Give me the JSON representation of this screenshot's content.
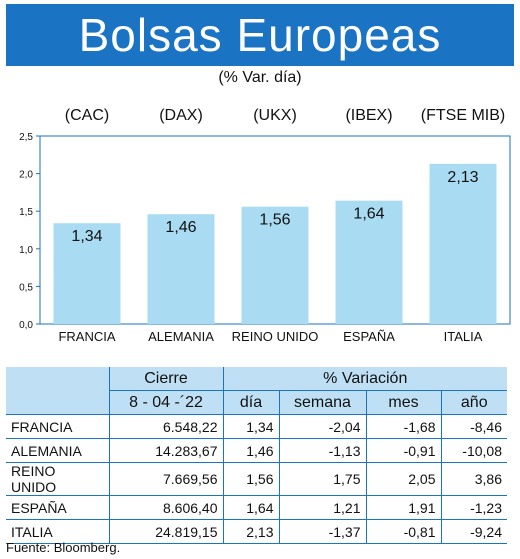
{
  "title": "Bolsas Europeas",
  "subtitle": "(% Var. día)",
  "chart_data": {
    "type": "bar",
    "categories": [
      "FRANCIA",
      "ALEMANIA",
      "REINO UNIDO",
      "ESPAÑA",
      "ITALIA"
    ],
    "indices": [
      "(CAC)",
      "(DAX)",
      "(UKX)",
      "(IBEX)",
      "(FTSE MIB)"
    ],
    "values": [
      1.34,
      1.46,
      1.56,
      1.64,
      2.13
    ],
    "value_labels": [
      "1,34",
      "1,46",
      "1,56",
      "1,64",
      "2,13"
    ],
    "ylim": [
      0,
      2.5
    ],
    "yticks": [
      "0,0",
      "0,5",
      "1,0",
      "1,5",
      "2,0",
      "2,5"
    ],
    "grid": false,
    "bar_color": "#a9dcf2",
    "axis_color": "#1a73c3"
  },
  "table": {
    "group_headers": [
      "Cierre",
      "% Variación"
    ],
    "date_label": "8 - 04 -´22",
    "sub_headers": [
      "día",
      "semana",
      "mes",
      "año"
    ],
    "rows": [
      [
        "FRANCIA",
        "6.548,22",
        "1,34",
        "-2,04",
        "-1,68",
        "-8,46"
      ],
      [
        "ALEMANIA",
        "14.283,67",
        "1,46",
        "-1,13",
        "-0,91",
        "-10,08"
      ],
      [
        "REINO UNIDO",
        "7.669,56",
        "1,56",
        "1,75",
        "2,05",
        "3,86"
      ],
      [
        "ESPAÑA",
        "8.606,40",
        "1,64",
        "1,21",
        "1,91",
        "-1,23"
      ],
      [
        "ITALIA",
        "24.819,15",
        "2,13",
        "-1,37",
        "-0,81",
        "-9,24"
      ]
    ]
  },
  "source": "Fuente: Bloomberg.",
  "colors": {
    "header_blue": "#1a73c3",
    "table_header_bg": "#bfe0f4"
  }
}
